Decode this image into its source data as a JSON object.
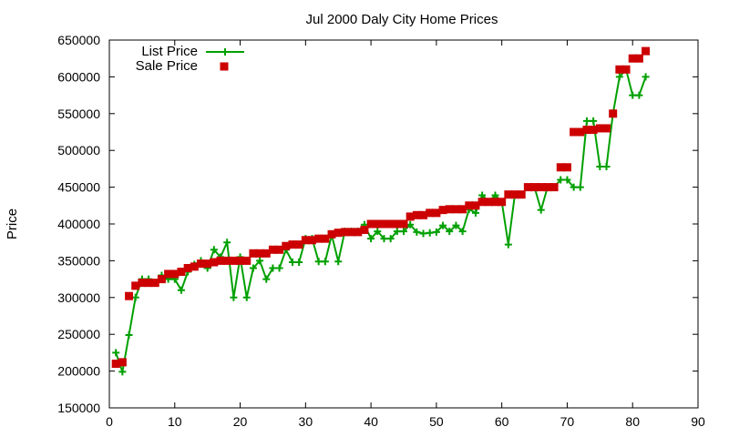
{
  "chart_data": {
    "type": "line",
    "title": "Jul 2000 Daly City Home Prices",
    "xlabel": "",
    "ylabel": "Price",
    "xlim": [
      0,
      90
    ],
    "ylim": [
      150000,
      650000
    ],
    "xticks": [
      0,
      10,
      20,
      30,
      40,
      50,
      60,
      70,
      80,
      90
    ],
    "yticks": [
      150000,
      200000,
      250000,
      300000,
      350000,
      400000,
      450000,
      500000,
      550000,
      600000,
      650000
    ],
    "grid": false,
    "legend_position": "top-left",
    "series": [
      {
        "name": "List Price",
        "style": "line-with-plus",
        "color": "#00a000",
        "x": [
          1,
          2,
          3,
          4,
          5,
          6,
          7,
          8,
          9,
          10,
          11,
          12,
          13,
          14,
          15,
          16,
          17,
          18,
          19,
          20,
          21,
          22,
          23,
          24,
          25,
          26,
          27,
          28,
          29,
          30,
          31,
          32,
          33,
          34,
          35,
          36,
          37,
          38,
          39,
          40,
          41,
          42,
          43,
          44,
          45,
          46,
          47,
          48,
          49,
          50,
          51,
          52,
          53,
          54,
          55,
          56,
          57,
          58,
          59,
          60,
          61,
          62,
          63,
          64,
          65,
          66,
          67,
          68,
          69,
          70,
          71,
          72,
          73,
          74,
          75,
          76,
          77,
          78,
          79,
          80,
          81,
          82
        ],
        "values": [
          225000,
          199000,
          249000,
          300000,
          325000,
          325000,
          320000,
          330000,
          325000,
          325000,
          310000,
          335000,
          345000,
          350000,
          340000,
          365000,
          355000,
          375000,
          300000,
          355000,
          300000,
          340000,
          350000,
          325000,
          340000,
          340000,
          365000,
          348000,
          348000,
          380000,
          380000,
          349000,
          349000,
          385000,
          349000,
          390000,
          390000,
          390000,
          399000,
          380000,
          390000,
          380000,
          380000,
          390000,
          390000,
          399000,
          389000,
          387000,
          388000,
          389000,
          398000,
          390000,
          398000,
          390000,
          420000,
          415000,
          439000,
          430000,
          439000,
          430000,
          372000,
          440000,
          440000,
          450000,
          450000,
          419000,
          450000,
          450000,
          460000,
          460000,
          450000,
          450000,
          540000,
          540000,
          478000,
          478000,
          550000,
          600000,
          610000,
          575000,
          575000,
          600000
        ]
      },
      {
        "name": "Sale Price",
        "style": "square-markers",
        "color": "#cc0000",
        "x": [
          1,
          2,
          3,
          4,
          5,
          6,
          7,
          8,
          9,
          10,
          11,
          12,
          13,
          14,
          15,
          16,
          17,
          18,
          19,
          20,
          21,
          22,
          23,
          24,
          25,
          26,
          27,
          28,
          29,
          30,
          31,
          32,
          33,
          34,
          35,
          36,
          37,
          38,
          39,
          40,
          41,
          42,
          43,
          44,
          45,
          46,
          47,
          48,
          49,
          50,
          51,
          52,
          53,
          54,
          55,
          56,
          57,
          58,
          59,
          60,
          61,
          62,
          63,
          64,
          65,
          66,
          67,
          68,
          69,
          70,
          71,
          72,
          73,
          74,
          75,
          76,
          77,
          78,
          79,
          80,
          81,
          82
        ],
        "values": [
          210000,
          212000,
          302000,
          316000,
          320000,
          320000,
          320000,
          325000,
          332000,
          332000,
          335000,
          340000,
          342000,
          346000,
          346000,
          348000,
          350000,
          350000,
          350000,
          350000,
          350000,
          360000,
          360000,
          360000,
          365000,
          365000,
          370000,
          372000,
          372000,
          378000,
          378000,
          380000,
          380000,
          386000,
          388000,
          389000,
          389000,
          389000,
          392000,
          400000,
          400000,
          400000,
          400000,
          400000,
          400000,
          410000,
          412000,
          412000,
          415000,
          415000,
          419000,
          420000,
          420000,
          420000,
          425000,
          425000,
          430000,
          430000,
          430000,
          430000,
          440000,
          440000,
          440000,
          450000,
          450000,
          450000,
          450000,
          450000,
          477000,
          477000,
          525000,
          525000,
          528000,
          528000,
          530000,
          530000,
          550000,
          610000,
          610000,
          625000,
          625000,
          635000
        ]
      }
    ]
  }
}
